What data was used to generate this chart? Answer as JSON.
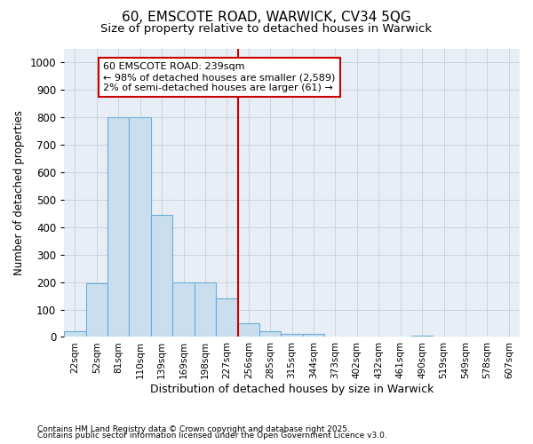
{
  "title_line1": "60, EMSCOTE ROAD, WARWICK, CV34 5QG",
  "title_line2": "Size of property relative to detached houses in Warwick",
  "xlabel": "Distribution of detached houses by size in Warwick",
  "ylabel": "Number of detached properties",
  "categories": [
    "22sqm",
    "52sqm",
    "81sqm",
    "110sqm",
    "139sqm",
    "169sqm",
    "198sqm",
    "227sqm",
    "256sqm",
    "285sqm",
    "315sqm",
    "344sqm",
    "373sqm",
    "402sqm",
    "432sqm",
    "461sqm",
    "490sqm",
    "519sqm",
    "549sqm",
    "578sqm",
    "607sqm"
  ],
  "values": [
    20,
    195,
    800,
    800,
    445,
    200,
    200,
    140,
    50,
    20,
    10,
    10,
    0,
    0,
    0,
    0,
    5,
    0,
    0,
    0,
    0
  ],
  "bar_color": "#c9dff0",
  "bar_edge_color": "#6aaed6",
  "vline_color": "#cc0000",
  "vline_x_index": 7.5,
  "annotation_line1": "60 EMSCOTE ROAD: 239sqm",
  "annotation_line2": "← 98% of detached houses are smaller (2,589)",
  "annotation_line3": "2% of semi-detached houses are larger (61) →",
  "annotation_box_color": "#ffffff",
  "annotation_box_edge_color": "#cc0000",
  "ylim": [
    0,
    1050
  ],
  "yticks": [
    0,
    100,
    200,
    300,
    400,
    500,
    600,
    700,
    800,
    900,
    1000
  ],
  "grid_color": "#c8d4e0",
  "plot_bg_color": "#e8eef5",
  "fig_bg_color": "#ffffff",
  "footnote_line1": "Contains HM Land Registry data © Crown copyright and database right 2025.",
  "footnote_line2": "Contains public sector information licensed under the Open Government Licence v3.0."
}
